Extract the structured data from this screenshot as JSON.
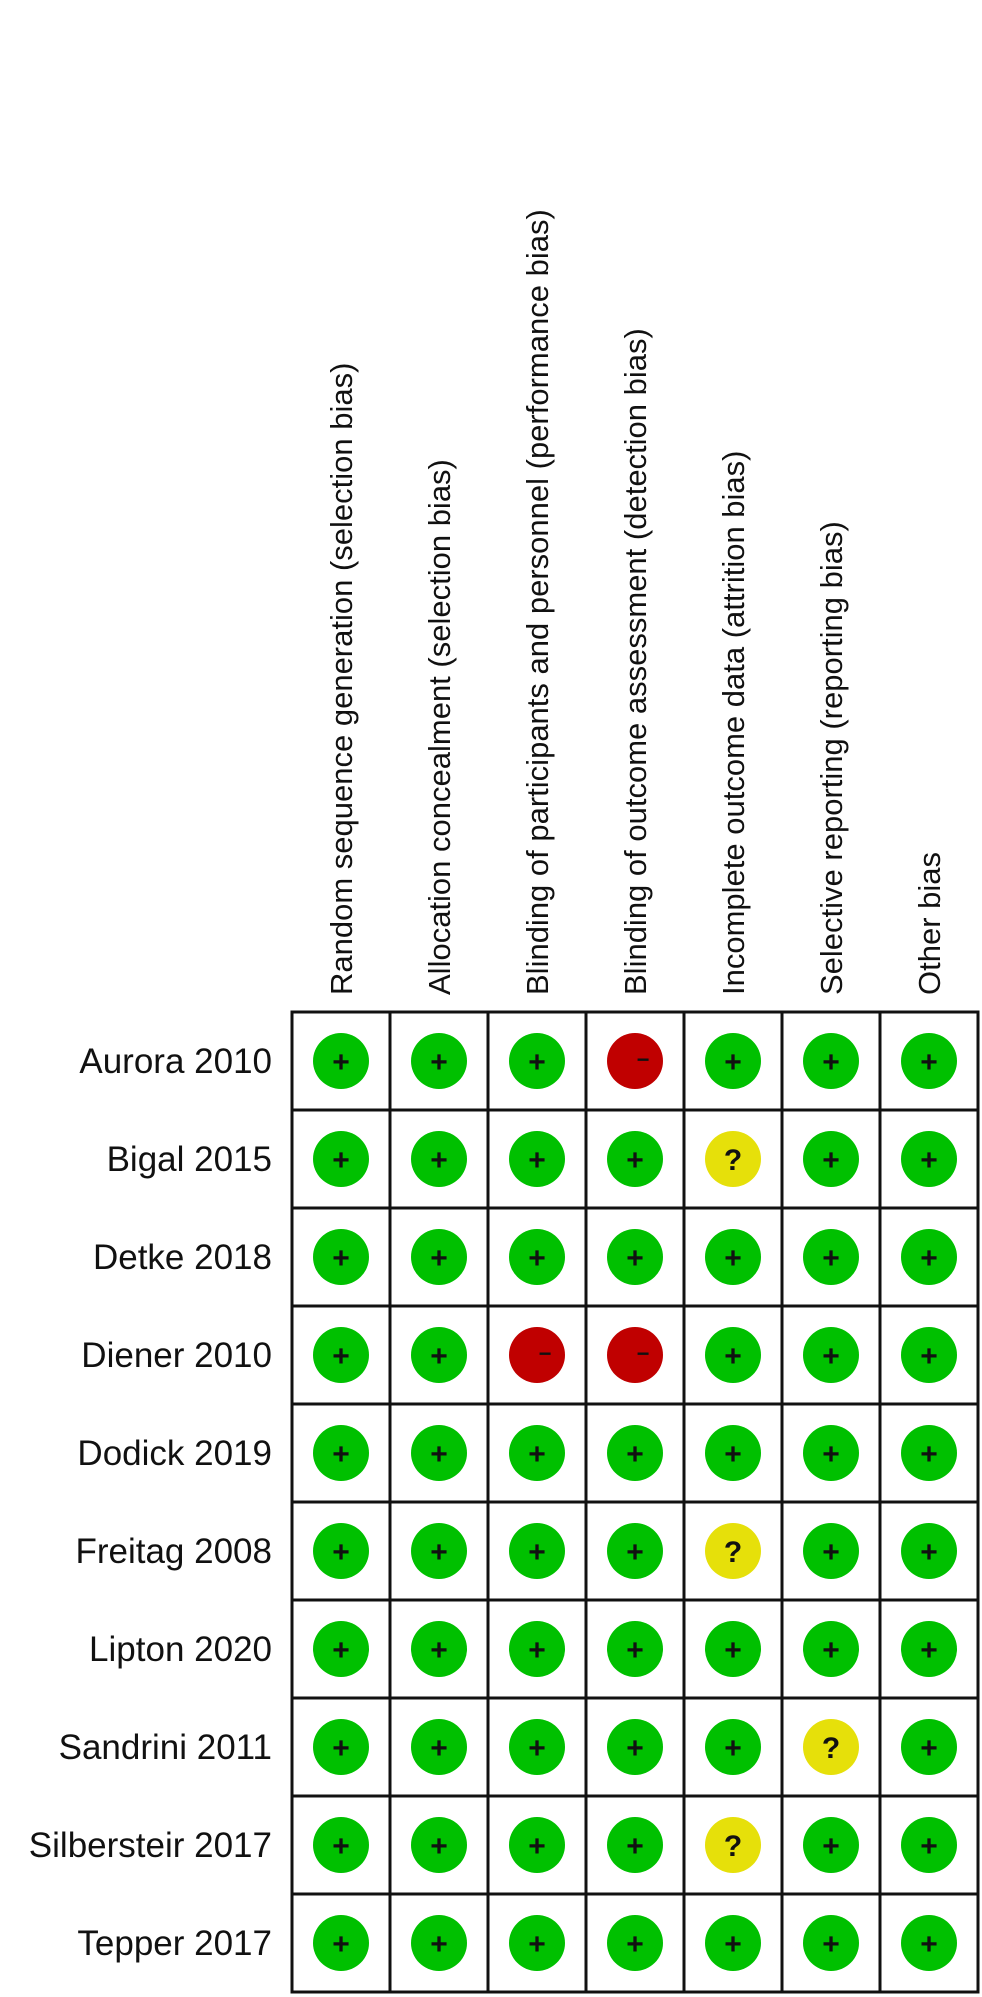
{
  "chart_data": {
    "type": "table",
    "columns": [
      "Random sequence generation (selection bias)",
      "Allocation concealment (selection bias)",
      "Blinding of participants and personnel (performance bias)",
      "Blinding of outcome assessment (detection bias)",
      "Incomplete outcome data (attrition bias)",
      "Selective reporting (reporting bias)",
      "Other bias"
    ],
    "rows": [
      {
        "label": "Aurora 2010",
        "values": [
          "low",
          "low",
          "low",
          "high",
          "low",
          "low",
          "low"
        ]
      },
      {
        "label": "Bigal 2015",
        "values": [
          "low",
          "low",
          "low",
          "low",
          "unclear",
          "low",
          "low"
        ]
      },
      {
        "label": "Detke 2018",
        "values": [
          "low",
          "low",
          "low",
          "low",
          "low",
          "low",
          "low"
        ]
      },
      {
        "label": "Diener 2010",
        "values": [
          "low",
          "low",
          "high",
          "high",
          "low",
          "low",
          "low"
        ]
      },
      {
        "label": "Dodick 2019",
        "values": [
          "low",
          "low",
          "low",
          "low",
          "low",
          "low",
          "low"
        ]
      },
      {
        "label": "Freitag 2008",
        "values": [
          "low",
          "low",
          "low",
          "low",
          "unclear",
          "low",
          "low"
        ]
      },
      {
        "label": "Lipton 2020",
        "values": [
          "low",
          "low",
          "low",
          "low",
          "low",
          "low",
          "low"
        ]
      },
      {
        "label": "Sandrini 2011",
        "values": [
          "low",
          "low",
          "low",
          "low",
          "low",
          "unclear",
          "low"
        ]
      },
      {
        "label": "Silbersteir 2017",
        "values": [
          "low",
          "low",
          "low",
          "low",
          "unclear",
          "low",
          "low"
        ]
      },
      {
        "label": "Tepper 2017",
        "values": [
          "low",
          "low",
          "low",
          "low",
          "low",
          "low",
          "low"
        ]
      }
    ],
    "judgements": {
      "low": {
        "color": "#00c000",
        "symbol": "+"
      },
      "unclear": {
        "color": "#e6e00a",
        "symbol": "?"
      },
      "high": {
        "color": "#c00000",
        "symbol": "−"
      }
    }
  }
}
